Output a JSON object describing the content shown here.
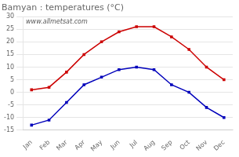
{
  "chart_data": {
    "type": "line",
    "title": "Bamyan : temperatures (°C)",
    "categories": [
      "Jan",
      "Feb",
      "Mar",
      "Apr",
      "May",
      "Jun",
      "Jul",
      "Aug",
      "Sep",
      "Oct",
      "Nov",
      "Dec"
    ],
    "series": [
      {
        "color": "#cc0000",
        "marker": "square",
        "values": [
          1,
          2,
          8,
          15,
          20,
          24,
          26,
          26,
          22,
          17,
          10,
          5
        ]
      },
      {
        "color": "#0000bb",
        "marker": "square",
        "values": [
          -13,
          -11,
          -4,
          3,
          6,
          9,
          10,
          9,
          3,
          0,
          -6,
          -10
        ]
      }
    ],
    "ylim": [
      -15,
      30
    ],
    "yticks": [
      -15,
      -10,
      -5,
      0,
      5,
      10,
      15,
      20,
      25,
      30
    ],
    "grid": "y",
    "annotations": [
      "www.allmetsat.com"
    ]
  }
}
